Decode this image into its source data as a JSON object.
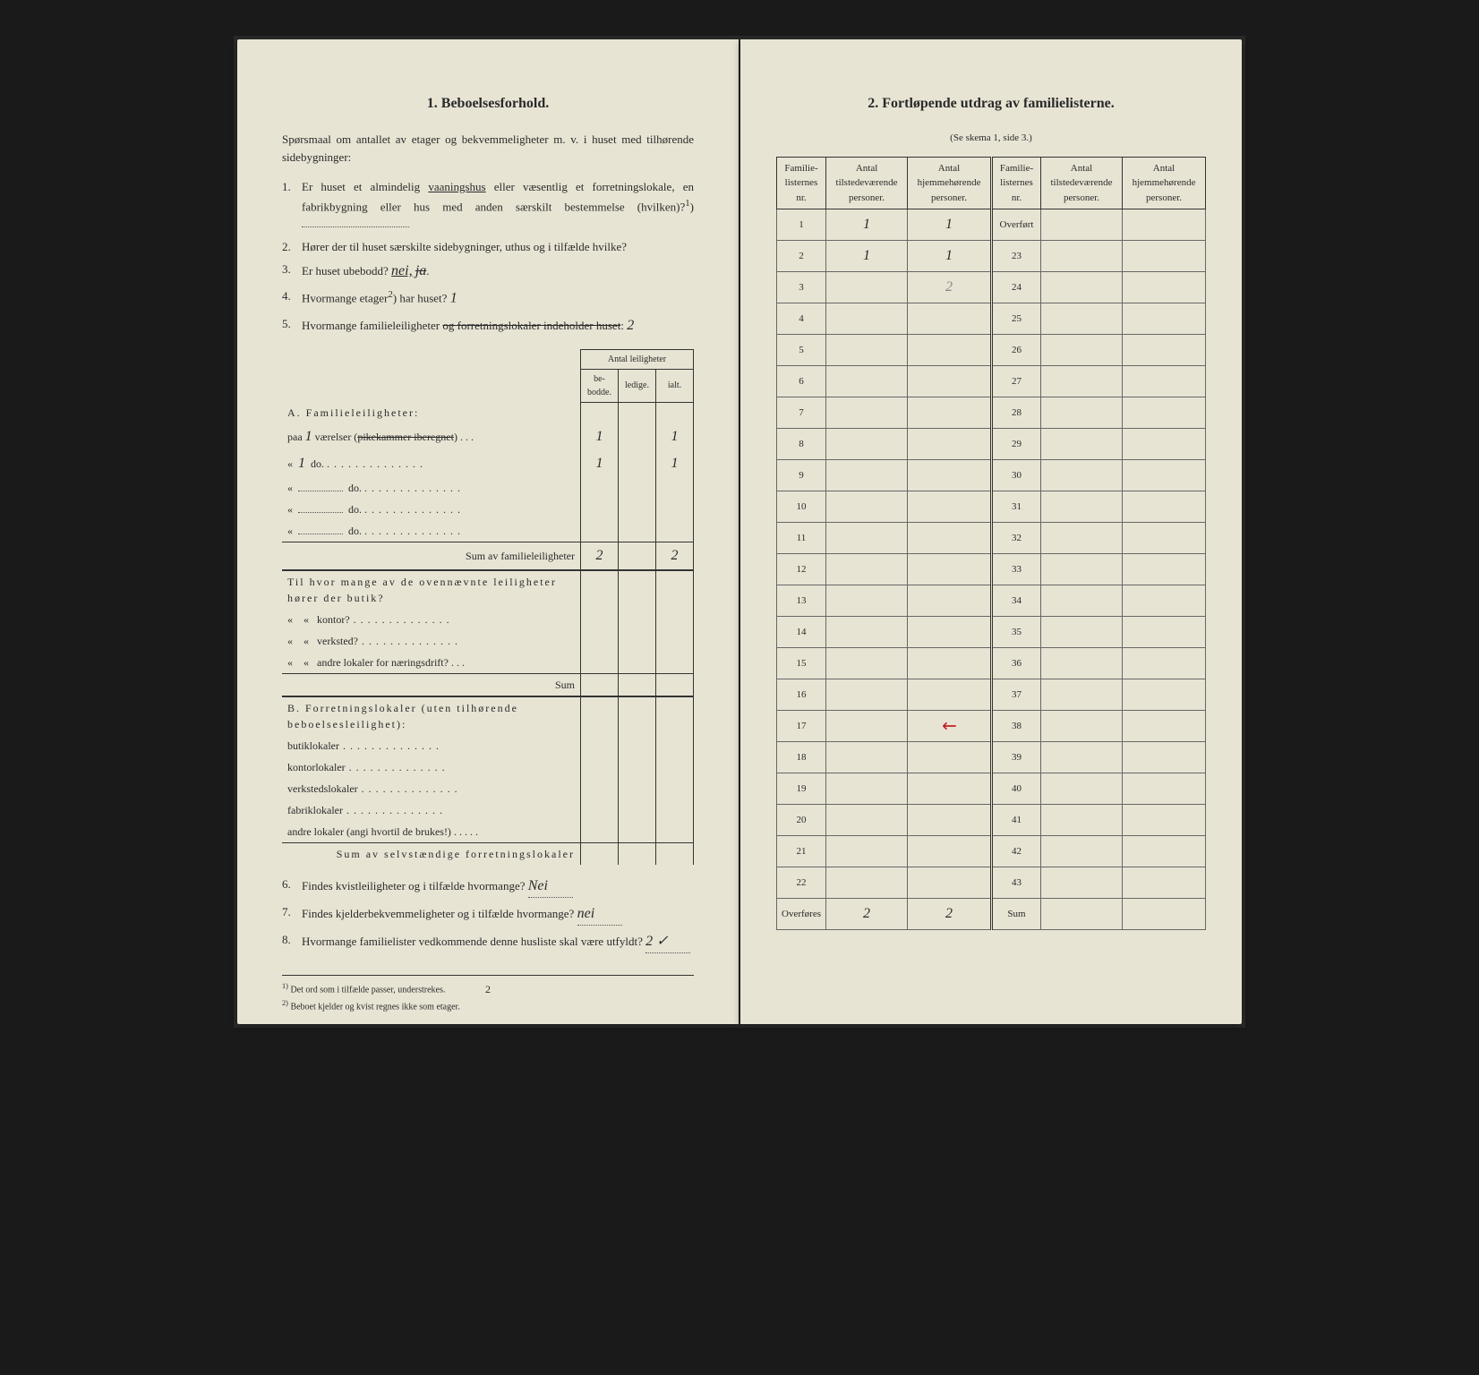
{
  "left": {
    "section_num": "1.",
    "section_title": "Beboelsesforhold.",
    "intro": "Spørsmaal om antallet av etager og bekvemmeligheter m. v. i huset med tilhørende sidebygninger:",
    "q1_num": "1.",
    "q1_a": "Er huset et almindelig ",
    "q1_underlined": "vaaningshus",
    "q1_b": " eller væsentlig et forretningslokale, en fabrikbygning eller hus med anden særskilt bestemmelse (hvilken)?",
    "q1_sup": "1",
    "q2_num": "2.",
    "q2": "Hører der til huset særskilte sidebygninger, uthus og i tilfælde hvilke?",
    "q3_num": "3.",
    "q3": "Er huset ubebodd?",
    "q3_ans": "nei,",
    "q3_strike": "ja",
    "q4_num": "4.",
    "q4": "Hvormange etager",
    "q4_sup": "2",
    "q4_b": ") har huset?",
    "q4_ans": "1",
    "q5_num": "5.",
    "q5": "Hvormange familieleiligheter ",
    "q5_strike": "og forretningslokaler indeholder huset",
    "q5_end": ":",
    "q5_ans": "2",
    "apt_header_group": "Antal leiligheter",
    "apt_h1": "be-bodde.",
    "apt_h2": "ledige.",
    "apt_h3": "ialt.",
    "secA": "A. Familieleiligheter:",
    "rowA1_label": "paa",
    "rowA1_val": "1",
    "rowA1_text": "værelser (",
    "rowA1_strike": "pikekammer iberegnet",
    "rowA1_end": ")",
    "rowA1_c1": "1",
    "rowA1_c3": "1",
    "rowA2_val": "1",
    "rowA2_text": "do.",
    "rowA2_c1": "1",
    "rowA2_c3": "1",
    "rowA3_text": "do.",
    "rowA4_text": "do.",
    "rowA5_text": "do.",
    "sumA": "Sum av familieleiligheter",
    "sumA_c1": "2",
    "sumA_c3": "2",
    "extra_intro": "Til hvor mange av de ovennævnte leiligheter hører der butik?",
    "extra2": "kontor?",
    "extra3": "verksted?",
    "extra4": "andre lokaler for næringsdrift?",
    "sum_label": "Sum",
    "secB": "B. Forretningslokaler (uten tilhørende beboelsesleilighet):",
    "b1": "butiklokaler",
    "b2": "kontorlokaler",
    "b3": "verkstedslokaler",
    "b4": "fabriklokaler",
    "b5": "andre lokaler (angi hvortil de brukes!)",
    "sumB": "Sum av selvstændige forretningslokaler",
    "q6_num": "6.",
    "q6": "Findes kvistleiligheter og i tilfælde hvormange?",
    "q6_ans": "Nei",
    "q7_num": "7.",
    "q7": "Findes kjelderbekvemmeligheter og i tilfælde hvormange?",
    "q7_ans": "nei",
    "q8_num": "8.",
    "q8": "Hvormange familielister vedkommende denne husliste skal være utfyldt?",
    "q8_ans": "2 ✓",
    "fn1_mark": "1)",
    "fn1": "Det ord som i tilfælde passer, understrekes.",
    "fn2_mark": "2)",
    "fn2": "Beboet kjelder og kvist regnes ikke som etager.",
    "pagenum": "2"
  },
  "right": {
    "section_num": "2.",
    "section_title": "Fortløpende utdrag av familielisterne.",
    "subtitle": "(Se skema 1, side 3.)",
    "h1": "Familie-listernes nr.",
    "h2": "Antal tilstedeværende personer.",
    "h3": "Antal hjemmehørende personer.",
    "rows_left": [
      "1",
      "2",
      "3",
      "4",
      "5",
      "6",
      "7",
      "8",
      "9",
      "10",
      "11",
      "12",
      "13",
      "14",
      "15",
      "16",
      "17",
      "18",
      "19",
      "20",
      "21",
      "22"
    ],
    "overf_label": "Overført",
    "rows_right": [
      "23",
      "24",
      "25",
      "26",
      "27",
      "28",
      "29",
      "30",
      "31",
      "32",
      "33",
      "34",
      "35",
      "36",
      "37",
      "38",
      "39",
      "40",
      "41",
      "42",
      "43"
    ],
    "r1_c2": "1",
    "r1_c3": "1",
    "r2_c2": "1",
    "r2_c3": "1",
    "r3_c3": "2",
    "overfores": "Overføres",
    "sum": "Sum",
    "tot_c2": "2",
    "tot_c3": "2"
  }
}
